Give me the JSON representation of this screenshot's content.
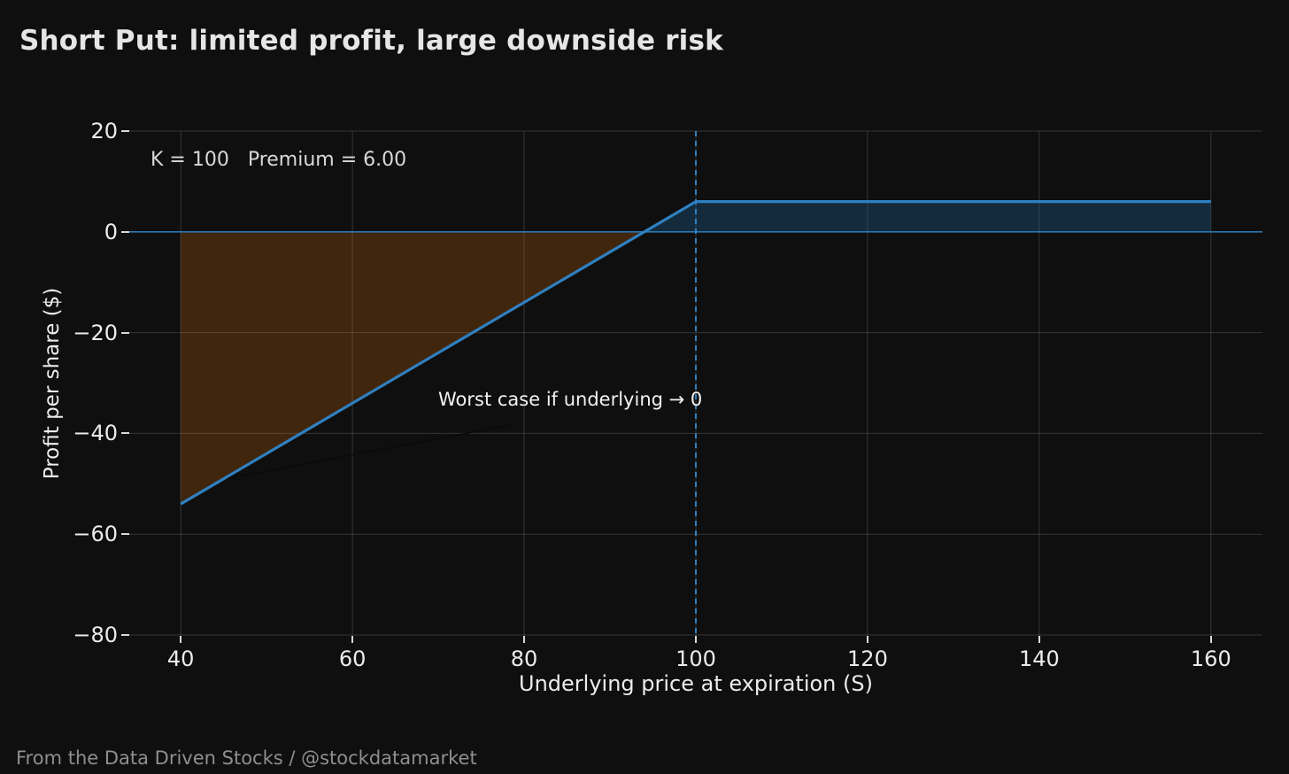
{
  "footer": {
    "credit": "From the Data Driven Stocks / @stockdatamarket"
  },
  "chart_data": {
    "type": "line",
    "title": "Short Put: limited profit, large downside risk",
    "xlabel": "Underlying price at expiration (S)",
    "ylabel": "Profit per share ($)",
    "xlim": [
      34,
      166
    ],
    "ylim": [
      -80,
      20
    ],
    "grid": true,
    "legend_position": "none",
    "strike_K": 100,
    "premium": 6.0,
    "breakeven": 94,
    "max_profit_per_share": 6,
    "x_ticks": [
      {
        "v": 40,
        "label": "40"
      },
      {
        "v": 60,
        "label": "60"
      },
      {
        "v": 80,
        "label": "80"
      },
      {
        "v": 100,
        "label": "100"
      },
      {
        "v": 120,
        "label": "120"
      },
      {
        "v": 140,
        "label": "140"
      },
      {
        "v": 160,
        "label": "160"
      }
    ],
    "y_ticks": [
      {
        "v": 20,
        "label": "20"
      },
      {
        "v": 0,
        "label": "0"
      },
      {
        "v": -20,
        "label": "−20"
      },
      {
        "v": -40,
        "label": "−40"
      },
      {
        "v": -60,
        "label": "−60"
      },
      {
        "v": -80,
        "label": "−80"
      }
    ],
    "series": [
      {
        "name": "short-put-payoff",
        "color": "#2f80c0",
        "width": 3.2,
        "points": [
          [
            40,
            -54
          ],
          [
            100,
            6
          ],
          [
            160,
            6
          ]
        ]
      }
    ],
    "fills": [
      {
        "name": "loss-region",
        "color": "rgba(255,127,14,0.21)",
        "points": [
          [
            40,
            0
          ],
          [
            94,
            0
          ],
          [
            40,
            -54
          ]
        ]
      },
      {
        "name": "profit-region",
        "color": "rgba(31,119,180,0.28)",
        "points": [
          [
            94,
            0
          ],
          [
            100,
            6
          ],
          [
            160,
            6
          ],
          [
            160,
            0
          ]
        ]
      }
    ],
    "zero_line": {
      "y": 0,
      "color": "#2b77b2",
      "width": 1.6
    },
    "strike_line": {
      "x": 100,
      "color": "#3080c0",
      "width": 2,
      "dash": "6,5"
    },
    "annotations": {
      "params_label": "K = 100   Premium = 6.00",
      "worst_case_label": "Worst case if underlying → 0"
    },
    "annotation_arrow": {
      "from": [
        78.8,
        -38.2
      ],
      "to": [
        45.6,
        -48.9
      ],
      "color": "#0a0a0a",
      "width": 1.5
    },
    "grid_color": "rgba(255,255,255,0.16)",
    "tick_color": "#d9d9d9"
  }
}
